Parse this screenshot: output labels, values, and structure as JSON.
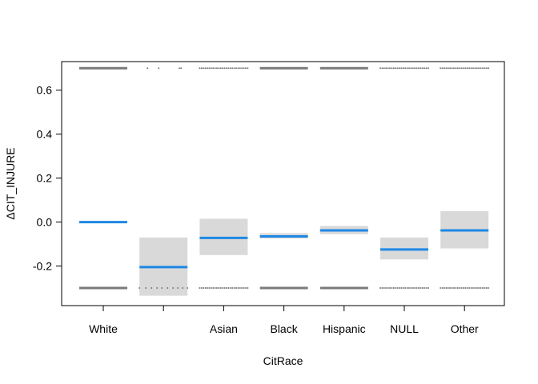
{
  "chart_data": {
    "type": "effect-plot",
    "xlabel": "CitRace",
    "ylabel": "ΔCIT_INJURE",
    "categories": [
      "White",
      "",
      "Asian",
      "Black",
      "Hispanic",
      "NULL",
      "Other"
    ],
    "ylim": [
      -0.38,
      0.73
    ],
    "yticks": [
      -0.2,
      0.0,
      0.2,
      0.4,
      0.6
    ],
    "ytick_labels": [
      "-0.2",
      "0.0",
      "0.2",
      "0.4",
      "0.6"
    ],
    "estimates": [
      0.0,
      -0.205,
      -0.072,
      -0.065,
      -0.038,
      -0.125,
      -0.038
    ],
    "ci_lower": [
      0.0,
      -0.335,
      -0.15,
      -0.075,
      -0.055,
      -0.17,
      -0.12
    ],
    "ci_upper": [
      0.0,
      -0.07,
      0.015,
      -0.05,
      -0.018,
      -0.07,
      0.05
    ],
    "rug_values": [
      0.7,
      -0.3
    ],
    "rug_density": [
      "dense",
      "sparse",
      "medium",
      "dense",
      "dense",
      "medium",
      "medium"
    ],
    "grid": false,
    "colors": {
      "estimate_line": "#1e88e5",
      "ci_band": "#d9d9d9",
      "rug": "#7a7a7a",
      "frame": "#000000"
    }
  }
}
